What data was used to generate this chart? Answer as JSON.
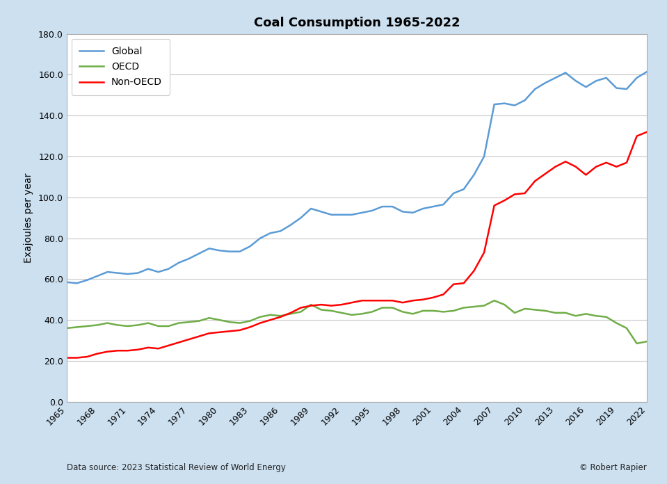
{
  "title": "Coal Consumption 1965-2022",
  "ylabel": "Exajoules per year",
  "footer_left": "Data source: 2023 Statistical Review of World Energy",
  "footer_right": "© Robert Rapier",
  "background_color": "#cce0f0",
  "plot_background": "#ffffff",
  "years": [
    1965,
    1966,
    1967,
    1968,
    1969,
    1970,
    1971,
    1972,
    1973,
    1974,
    1975,
    1976,
    1977,
    1978,
    1979,
    1980,
    1981,
    1982,
    1983,
    1984,
    1985,
    1986,
    1987,
    1988,
    1989,
    1990,
    1991,
    1992,
    1993,
    1994,
    1995,
    1996,
    1997,
    1998,
    1999,
    2000,
    2001,
    2002,
    2003,
    2004,
    2005,
    2006,
    2007,
    2008,
    2009,
    2010,
    2011,
    2012,
    2013,
    2014,
    2015,
    2016,
    2017,
    2018,
    2019,
    2020,
    2021,
    2022
  ],
  "global": [
    58.5,
    58.0,
    59.5,
    61.5,
    63.5,
    63.0,
    62.5,
    63.0,
    65.0,
    63.5,
    65.0,
    68.0,
    70.0,
    72.5,
    75.0,
    74.0,
    73.5,
    73.5,
    76.0,
    80.0,
    82.5,
    83.5,
    86.5,
    90.0,
    94.5,
    93.0,
    91.5,
    91.5,
    91.5,
    92.5,
    93.5,
    95.5,
    95.5,
    93.0,
    92.5,
    94.5,
    95.5,
    96.5,
    102.0,
    104.0,
    111.0,
    120.0,
    145.5,
    146.0,
    145.0,
    147.5,
    153.0,
    156.0,
    158.5,
    161.0,
    157.0,
    154.0,
    157.0,
    158.5,
    153.5,
    153.0,
    158.5,
    161.5
  ],
  "oecd": [
    36.0,
    36.5,
    37.0,
    37.5,
    38.5,
    37.5,
    37.0,
    37.5,
    38.5,
    37.0,
    37.0,
    38.5,
    39.0,
    39.5,
    41.0,
    40.0,
    39.0,
    38.5,
    39.5,
    41.5,
    42.5,
    42.0,
    43.0,
    44.0,
    47.5,
    45.0,
    44.5,
    43.5,
    42.5,
    43.0,
    44.0,
    46.0,
    46.0,
    44.0,
    43.0,
    44.5,
    44.5,
    44.0,
    44.5,
    46.0,
    46.5,
    47.0,
    49.5,
    47.5,
    43.5,
    45.5,
    45.0,
    44.5,
    43.5,
    43.5,
    42.0,
    43.0,
    42.0,
    41.5,
    38.5,
    36.0,
    28.5,
    29.5
  ],
  "nonoecd": [
    21.5,
    21.5,
    22.0,
    23.5,
    24.5,
    25.0,
    25.0,
    25.5,
    26.5,
    26.0,
    27.5,
    29.0,
    30.5,
    32.0,
    33.5,
    34.0,
    34.5,
    35.0,
    36.5,
    38.5,
    40.0,
    41.5,
    43.5,
    46.0,
    47.0,
    47.5,
    47.0,
    47.5,
    48.5,
    49.5,
    49.5,
    49.5,
    49.5,
    48.5,
    49.5,
    50.0,
    51.0,
    52.5,
    57.5,
    58.0,
    64.0,
    73.0,
    96.0,
    98.5,
    101.5,
    102.0,
    108.0,
    111.5,
    115.0,
    117.5,
    115.0,
    111.0,
    115.0,
    117.0,
    115.0,
    117.0,
    130.0,
    132.0
  ],
  "global_color": "#5B9BD5",
  "oecd_color": "#70AD47",
  "nonoecd_color": "#FF0000",
  "ylim": [
    0,
    180
  ],
  "yticks": [
    0,
    20,
    40,
    60,
    80,
    100,
    120,
    140,
    160,
    180
  ],
  "xtick_years": [
    1965,
    1968,
    1971,
    1974,
    1977,
    1980,
    1983,
    1986,
    1989,
    1992,
    1995,
    1998,
    2001,
    2004,
    2007,
    2010,
    2013,
    2016,
    2019,
    2022
  ],
  "linewidth": 1.8,
  "title_fontsize": 13,
  "axis_fontsize": 9,
  "ylabel_fontsize": 10,
  "legend_fontsize": 10,
  "footer_fontsize": 8.5
}
